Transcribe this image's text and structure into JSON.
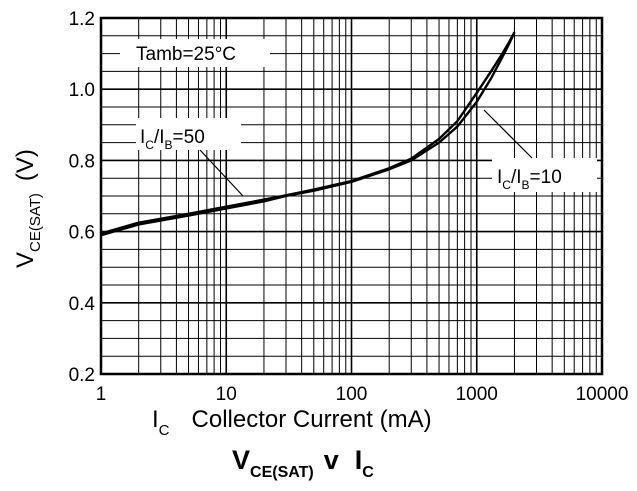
{
  "chart_data": {
    "type": "line",
    "title": {
      "main": "V",
      "main_sub": "CE(SAT)",
      "mid": "v",
      "end": "I",
      "end_sub": "C"
    },
    "xlabel": {
      "symbol": "I",
      "symbol_sub": "C",
      "text": "Collector Current (mA)"
    },
    "ylabel": {
      "symbol": "V",
      "symbol_sub": "CE(SAT)",
      "unit": "(V)"
    },
    "x_scale": "log",
    "xlim": [
      1,
      10000
    ],
    "ylim": [
      0.2,
      1.2
    ],
    "x_tick_labels": [
      "1",
      "10",
      "100",
      "1000",
      "10000"
    ],
    "y_tick_labels": [
      "0.2",
      "0.4",
      "0.6",
      "0.8",
      "1.0",
      "1.2"
    ],
    "grid": true,
    "annotation": "Tamb=25°C",
    "series": [
      {
        "name": "IC/IB=50",
        "label_parts": {
          "a": "I",
          "a_sub": "C",
          "b": "/I",
          "b_sub": "B",
          "c": "=50"
        },
        "x": [
          1,
          2,
          5,
          10,
          20,
          30,
          50,
          100,
          200,
          300,
          500,
          700,
          1000,
          1300,
          1600,
          1800,
          2000
        ],
        "y": [
          0.59,
          0.62,
          0.645,
          0.665,
          0.685,
          0.7,
          0.715,
          0.74,
          0.775,
          0.8,
          0.85,
          0.895,
          0.965,
          1.03,
          1.09,
          1.125,
          1.16
        ]
      },
      {
        "name": "IC/IB=10",
        "label_parts": {
          "a": "I",
          "a_sub": "C",
          "b": "/I",
          "b_sub": "B",
          "c": "=10"
        },
        "x": [
          1,
          2,
          5,
          10,
          20,
          30,
          50,
          100,
          200,
          300,
          500,
          700,
          1000,
          1300,
          1600,
          1800,
          2000
        ],
        "y": [
          0.595,
          0.625,
          0.65,
          0.67,
          0.69,
          0.702,
          0.718,
          0.742,
          0.778,
          0.805,
          0.86,
          0.91,
          0.99,
          1.05,
          1.1,
          1.13,
          1.16
        ]
      }
    ]
  }
}
